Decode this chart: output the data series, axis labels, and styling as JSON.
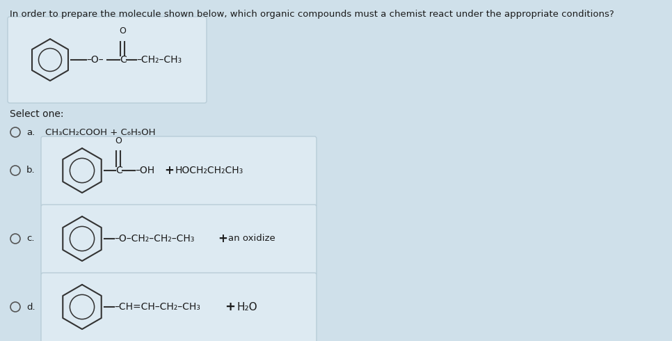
{
  "background_color": "#cfe0ea",
  "title_text": "In order to prepare the molecule shown below, which organic compounds must a chemist react under the appropriate conditions?",
  "select_text": "Select one:",
  "box_face_color": "#ddeaf2",
  "box_edge_color": "#b0c8d8",
  "radio_fill": "#cfe0ea",
  "radio_edge": "#555555",
  "line_color": "#333333",
  "text_color": "#1a1a1a",
  "option_a_text": "CH₃CH₂COOH + C₆H₅OH",
  "font_size_title": 9.5,
  "font_size_body": 9.5,
  "font_size_sub": 7.5
}
